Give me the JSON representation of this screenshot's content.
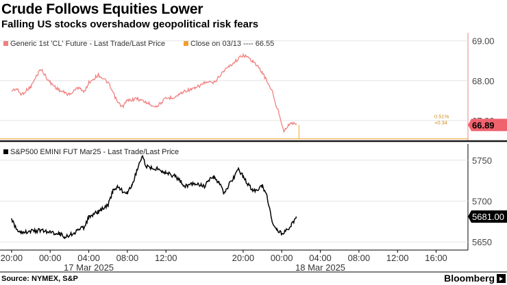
{
  "header": {
    "title": "Crude Follows Equities Lower",
    "subtitle": "Falling US stocks overshadow geopolitical risk fears"
  },
  "footer": {
    "source": "Source: NYMEX, S&P",
    "brand": "Bloomberg"
  },
  "chart_data": [
    {
      "type": "line",
      "panel": "top",
      "legend": {
        "series_label": "Generic 1st 'CL' Future - Last Trade/Last Price",
        "reference_label": "Close on 03/13 ---- 66.55"
      },
      "ylim": [
        66.5,
        69.2
      ],
      "yticks": [
        "69.00",
        "68.00",
        "67.00"
      ],
      "last_value_label": "66.89",
      "change_pct_label": "0.51%",
      "change_abs_label": "+0.34",
      "reference_value": 66.55,
      "colors": {
        "series": "#f08080",
        "reference": "#f0a030",
        "label_bg": "#f0626e"
      },
      "series": [
        {
          "x": [
            0,
            0.5,
            1,
            2,
            3,
            4,
            4.5,
            5,
            6,
            7,
            7.5,
            8,
            9,
            10,
            11,
            11.5,
            12,
            13,
            14,
            15,
            16,
            17,
            18,
            19,
            20,
            21,
            22,
            23,
            24,
            25,
            26,
            27,
            27.3,
            27.7,
            28.2,
            29,
            29.5
          ],
          "values": [
            67.75,
            67.8,
            67.65,
            67.85,
            68.3,
            67.95,
            67.85,
            67.75,
            67.65,
            67.85,
            67.7,
            67.95,
            68.15,
            67.95,
            67.45,
            67.35,
            67.5,
            67.55,
            67.45,
            67.35,
            67.55,
            67.6,
            67.75,
            67.8,
            67.95,
            67.95,
            68.25,
            68.45,
            68.65,
            68.5,
            68.2,
            67.75,
            67.45,
            67.2,
            66.75,
            66.95,
            66.89
          ]
        }
      ]
    },
    {
      "type": "line",
      "panel": "bottom",
      "legend": {
        "series_label": "S&P500 EMINI FUT  Mar25 - Last Trade/Last Price"
      },
      "ylim": [
        5640,
        5770
      ],
      "yticks": [
        "5750",
        "5700",
        "5650"
      ],
      "last_value_label": "5681.00",
      "colors": {
        "series": "#000000",
        "label_bg": "#000000"
      },
      "series": [
        {
          "x": [
            0,
            0.5,
            1,
            2,
            3,
            4,
            5,
            5.5,
            6,
            7,
            7.5,
            8,
            9,
            10,
            10.5,
            11,
            11.5,
            12,
            12.5,
            13,
            13.5,
            14,
            15,
            16,
            17,
            18,
            19,
            20,
            20.5,
            21,
            21.5,
            22,
            23,
            23.5,
            24,
            25,
            26,
            26.5,
            27,
            27.5,
            28,
            28.5,
            29,
            29.5
          ],
          "values": [
            5678,
            5666,
            5662,
            5663,
            5664,
            5662,
            5660,
            5656,
            5658,
            5665,
            5668,
            5680,
            5687,
            5695,
            5712,
            5718,
            5712,
            5710,
            5720,
            5738,
            5755,
            5742,
            5740,
            5735,
            5730,
            5718,
            5722,
            5718,
            5726,
            5728,
            5722,
            5710,
            5728,
            5740,
            5730,
            5712,
            5718,
            5705,
            5675,
            5665,
            5660,
            5665,
            5670,
            5681
          ]
        }
      ]
    }
  ],
  "x_axis": {
    "hour_ticks": [
      "20:00",
      "00:00",
      "04:00",
      "08:00",
      "12:00",
      "20:00",
      "00:00",
      "04:00",
      "08:00",
      "12:00",
      "16:00"
    ],
    "hour_tick_x": [
      0,
      4,
      8,
      12,
      16,
      24,
      28,
      32,
      36,
      40,
      44
    ],
    "date_ticks": [
      "17 Mar 2025",
      "18 Mar 2025"
    ],
    "date_tick_x": [
      8,
      32
    ],
    "xlim": [
      -1.2,
      47.3
    ]
  }
}
